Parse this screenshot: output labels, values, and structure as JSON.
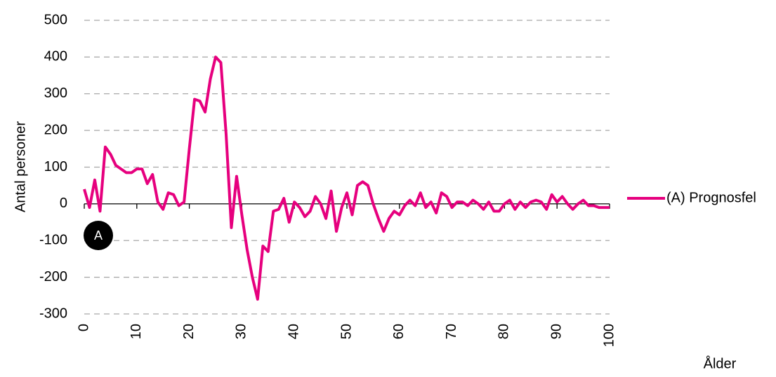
{
  "chart_data": {
    "type": "line",
    "x_label": "Ålder",
    "y_label": "Antal personer",
    "x": [
      0,
      1,
      2,
      3,
      4,
      5,
      6,
      7,
      8,
      9,
      10,
      11,
      12,
      13,
      14,
      15,
      16,
      17,
      18,
      19,
      20,
      21,
      22,
      23,
      24,
      25,
      26,
      27,
      28,
      29,
      30,
      31,
      32,
      33,
      34,
      35,
      36,
      37,
      38,
      39,
      40,
      41,
      42,
      43,
      44,
      45,
      46,
      47,
      48,
      49,
      50,
      51,
      52,
      53,
      54,
      55,
      56,
      57,
      58,
      59,
      60,
      61,
      62,
      63,
      64,
      65,
      66,
      67,
      68,
      69,
      70,
      71,
      72,
      73,
      74,
      75,
      76,
      77,
      78,
      79,
      80,
      81,
      82,
      83,
      84,
      85,
      86,
      87,
      88,
      89,
      90,
      91,
      92,
      93,
      94,
      95,
      96,
      97,
      98,
      99,
      100
    ],
    "series": [
      {
        "name": "(A) Prognosfel",
        "color": "#e6007e",
        "values": [
          40,
          -10,
          65,
          -20,
          155,
          135,
          105,
          95,
          85,
          85,
          95,
          95,
          55,
          80,
          5,
          -15,
          30,
          25,
          -5,
          5,
          150,
          285,
          280,
          250,
          340,
          400,
          385,
          190,
          -65,
          75,
          -30,
          -125,
          -200,
          -260,
          -115,
          -130,
          -20,
          -15,
          15,
          -50,
          5,
          -10,
          -35,
          -20,
          20,
          0,
          -40,
          35,
          -75,
          -10,
          30,
          -30,
          50,
          60,
          50,
          0,
          -40,
          -75,
          -40,
          -20,
          -30,
          -5,
          10,
          -5,
          30,
          -10,
          5,
          -25,
          30,
          20,
          -10,
          5,
          5,
          -5,
          10,
          0,
          -15,
          5,
          -20,
          -20,
          0,
          10,
          -15,
          5,
          -10,
          5,
          10,
          5,
          -15,
          25,
          5,
          20,
          0,
          -15,
          0,
          10,
          -5,
          -5,
          -10,
          -10,
          -10
        ]
      }
    ],
    "annotations": [
      "A"
    ],
    "xlim": [
      0,
      100
    ],
    "xticks": [
      0,
      10,
      20,
      30,
      40,
      50,
      60,
      70,
      80,
      90,
      100
    ],
    "ylim": [
      -300,
      500
    ],
    "yticks": [
      -300,
      -200,
      -100,
      0,
      100,
      200,
      300,
      400,
      500
    ],
    "grid": true,
    "legend": "right"
  }
}
